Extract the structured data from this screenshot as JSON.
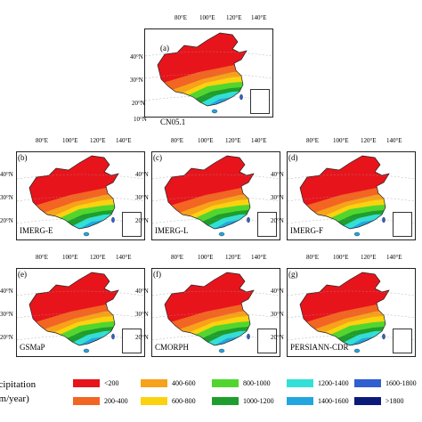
{
  "map_panels": [
    {
      "id": "a",
      "label": "(a)",
      "name": "CN05.1"
    },
    {
      "id": "b",
      "label": "(b)",
      "name": "IMERG-E"
    },
    {
      "id": "c",
      "label": "(c)",
      "name": "IMERG-L"
    },
    {
      "id": "d",
      "label": "(d)",
      "name": "IMERG-F"
    },
    {
      "id": "e",
      "label": "(e)",
      "name": "GSMaP"
    },
    {
      "id": "f",
      "label": "(f)",
      "name": "CMORPH"
    },
    {
      "id": "g",
      "label": "(g)",
      "name": "PERSIANN-CDR"
    }
  ],
  "lon_ticks": [
    "80°E",
    "100°E",
    "120°E",
    "140°E"
  ],
  "lat_ticks": [
    "40°N",
    "30°N",
    "20°N",
    "10°N"
  ],
  "legend": {
    "title_line1": "recipitation",
    "title_line2": "mm/year)",
    "items": [
      {
        "label": "<200",
        "color": "#e8141b"
      },
      {
        "label": "200-400",
        "color": "#f26522"
      },
      {
        "label": "400-600",
        "color": "#f7a21b"
      },
      {
        "label": "600-800",
        "color": "#fcd20f"
      },
      {
        "label": "800-1000",
        "color": "#52d62e"
      },
      {
        "label": "1000-1200",
        "color": "#1e9e2c"
      },
      {
        "label": "1200-1400",
        "color": "#33e0d8"
      },
      {
        "label": "1400-1600",
        "color": "#22a6df"
      },
      {
        "label": "1600-1800",
        "color": "#2f5fd0"
      },
      {
        "label": ">1800",
        "color": "#0b1a7a"
      }
    ]
  }
}
